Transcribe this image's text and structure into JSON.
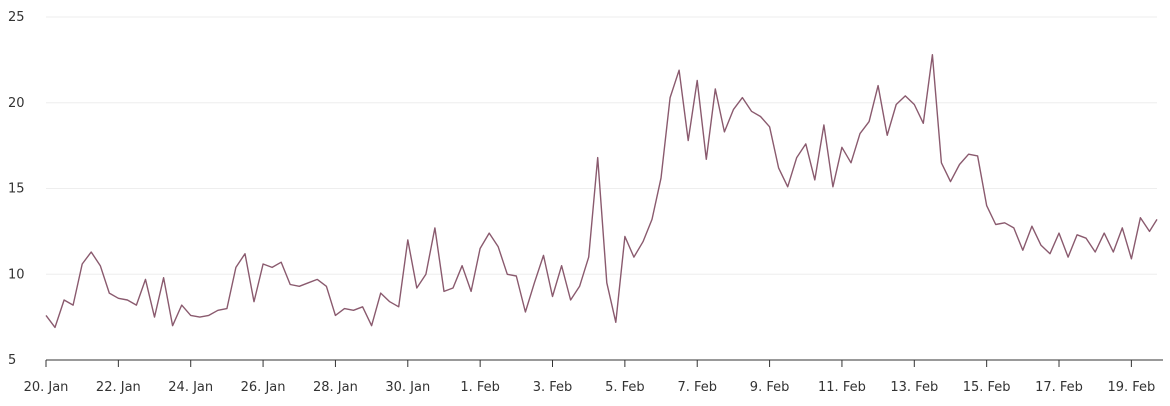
{
  "chart_data": {
    "type": "line",
    "title": "",
    "xlabel": "",
    "ylabel": "",
    "ylim": [
      5,
      25
    ],
    "yticks": [
      5,
      10,
      15,
      20,
      25
    ],
    "xlim": [
      "2024-01-20",
      "2024-02-19T17:00"
    ],
    "xtick_labels": [
      "20. Jan",
      "22. Jan",
      "24. Jan",
      "26. Jan",
      "28. Jan",
      "30. Jan",
      "1. Feb",
      "3. Feb",
      "5. Feb",
      "7. Feb",
      "9. Feb",
      "11. Feb",
      "13. Feb",
      "15. Feb",
      "17. Feb",
      "19. Feb"
    ],
    "xtick_dates": [
      "2024-01-20",
      "2024-01-22",
      "2024-01-24",
      "2024-01-26",
      "2024-01-28",
      "2024-01-30",
      "2024-02-01",
      "2024-02-03",
      "2024-02-05",
      "2024-02-07",
      "2024-02-09",
      "2024-02-11",
      "2024-02-13",
      "2024-02-15",
      "2024-02-17",
      "2024-02-19"
    ],
    "grid": true,
    "legend": "none",
    "series": [
      {
        "color": "#8a5a6e",
        "x": [
          "2024-01-20T00:00",
          "2024-01-20T06:00",
          "2024-01-20T12:00",
          "2024-01-20T18:00",
          "2024-01-21T00:00",
          "2024-01-21T06:00",
          "2024-01-21T12:00",
          "2024-01-21T18:00",
          "2024-01-22T00:00",
          "2024-01-22T06:00",
          "2024-01-22T12:00",
          "2024-01-22T18:00",
          "2024-01-23T00:00",
          "2024-01-23T06:00",
          "2024-01-23T12:00",
          "2024-01-23T18:00",
          "2024-01-24T00:00",
          "2024-01-24T06:00",
          "2024-01-24T12:00",
          "2024-01-24T18:00",
          "2024-01-25T00:00",
          "2024-01-25T06:00",
          "2024-01-25T12:00",
          "2024-01-25T18:00",
          "2024-01-26T00:00",
          "2024-01-26T06:00",
          "2024-01-26T12:00",
          "2024-01-26T18:00",
          "2024-01-27T00:00",
          "2024-01-27T06:00",
          "2024-01-27T12:00",
          "2024-01-27T18:00",
          "2024-01-28T00:00",
          "2024-01-28T06:00",
          "2024-01-28T12:00",
          "2024-01-28T18:00",
          "2024-01-29T00:00",
          "2024-01-29T06:00",
          "2024-01-29T12:00",
          "2024-01-29T18:00",
          "2024-01-30T00:00",
          "2024-01-30T06:00",
          "2024-01-30T12:00",
          "2024-01-30T18:00",
          "2024-01-31T00:00",
          "2024-01-31T06:00",
          "2024-01-31T12:00",
          "2024-01-31T18:00",
          "2024-02-01T00:00",
          "2024-02-01T06:00",
          "2024-02-01T12:00",
          "2024-02-01T18:00",
          "2024-02-02T00:00",
          "2024-02-02T06:00",
          "2024-02-02T12:00",
          "2024-02-02T18:00",
          "2024-02-03T00:00",
          "2024-02-03T06:00",
          "2024-02-03T12:00",
          "2024-02-03T18:00",
          "2024-02-04T00:00",
          "2024-02-04T06:00",
          "2024-02-04T12:00",
          "2024-02-04T18:00",
          "2024-02-05T00:00",
          "2024-02-05T06:00",
          "2024-02-05T12:00",
          "2024-02-05T18:00",
          "2024-02-06T00:00",
          "2024-02-06T06:00",
          "2024-02-06T12:00",
          "2024-02-06T18:00",
          "2024-02-07T00:00",
          "2024-02-07T06:00",
          "2024-02-07T12:00",
          "2024-02-07T18:00",
          "2024-02-08T00:00",
          "2024-02-08T06:00",
          "2024-02-08T12:00",
          "2024-02-08T18:00",
          "2024-02-09T00:00",
          "2024-02-09T06:00",
          "2024-02-09T12:00",
          "2024-02-09T18:00",
          "2024-02-10T00:00",
          "2024-02-10T06:00",
          "2024-02-10T12:00",
          "2024-02-10T18:00",
          "2024-02-11T00:00",
          "2024-02-11T06:00",
          "2024-02-11T12:00",
          "2024-02-11T18:00",
          "2024-02-12T00:00",
          "2024-02-12T06:00",
          "2024-02-12T12:00",
          "2024-02-12T18:00",
          "2024-02-13T00:00",
          "2024-02-13T06:00",
          "2024-02-13T12:00",
          "2024-02-13T18:00",
          "2024-02-14T00:00",
          "2024-02-14T06:00",
          "2024-02-14T12:00",
          "2024-02-14T18:00",
          "2024-02-15T00:00",
          "2024-02-15T06:00",
          "2024-02-15T12:00",
          "2024-02-15T18:00",
          "2024-02-16T00:00",
          "2024-02-16T06:00",
          "2024-02-16T12:00",
          "2024-02-16T18:00",
          "2024-02-17T00:00",
          "2024-02-17T06:00",
          "2024-02-17T12:00",
          "2024-02-17T18:00",
          "2024-02-18T00:00",
          "2024-02-18T06:00",
          "2024-02-18T12:00",
          "2024-02-18T18:00",
          "2024-02-19T00:00",
          "2024-02-19T06:00",
          "2024-02-19T12:00",
          "2024-02-19T17:00"
        ],
        "y": [
          7.6,
          6.9,
          8.5,
          8.2,
          10.6,
          11.3,
          10.5,
          8.9,
          8.6,
          8.5,
          8.2,
          9.7,
          7.5,
          9.8,
          7.0,
          8.2,
          7.6,
          7.5,
          7.6,
          7.9,
          8.0,
          10.4,
          11.2,
          8.4,
          10.6,
          10.4,
          10.7,
          9.4,
          9.3,
          9.5,
          9.7,
          9.3,
          7.6,
          8.0,
          7.9,
          8.1,
          7.0,
          8.9,
          8.4,
          8.1,
          12.0,
          9.2,
          10.0,
          12.7,
          9.0,
          9.2,
          10.5,
          9.0,
          11.5,
          12.4,
          11.6,
          10.0,
          9.9,
          7.8,
          9.5,
          11.1,
          8.7,
          10.5,
          8.5,
          9.3,
          11.0,
          16.8,
          9.5,
          7.2,
          12.2,
          11.0,
          11.9,
          13.2,
          15.6,
          20.3,
          21.9,
          17.8,
          21.3,
          16.7,
          20.8,
          18.3,
          19.6,
          20.3,
          19.5,
          19.2,
          18.6,
          16.2,
          15.1,
          16.8,
          17.6,
          15.5,
          18.7,
          15.1,
          17.4,
          16.5,
          18.2,
          18.9,
          21.0,
          18.1,
          19.9,
          20.4,
          19.9,
          18.8,
          22.8,
          16.5,
          15.4,
          16.4,
          17.0,
          16.9,
          14.0,
          12.9,
          13.0,
          12.7,
          11.4,
          12.8,
          11.7,
          11.2,
          12.4,
          11.0,
          12.3,
          12.1,
          11.3,
          12.4,
          11.3,
          12.7,
          10.9,
          13.3,
          12.5,
          13.2
        ]
      }
    ]
  }
}
